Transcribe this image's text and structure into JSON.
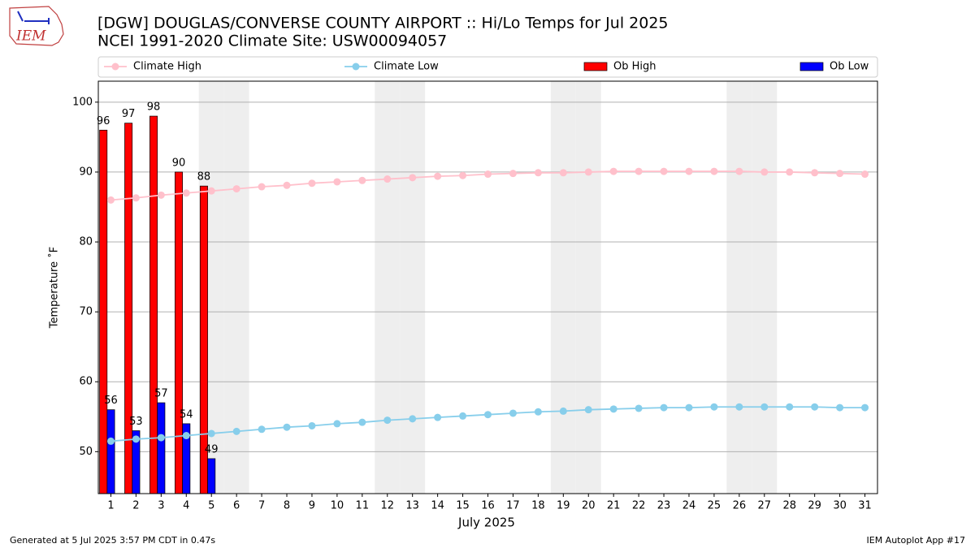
{
  "chart_data": {
    "type": "bar_line",
    "title": "[DGW] DOUGLAS/CONVERSE COUNTY AIRPORT :: Hi/Lo Temps for Jul 2025",
    "subtitle": "NCEI 1991-2020 Climate Site: USW00094057",
    "xlabel": "July 2025",
    "ylabel": "Temperature $^\\circ$F",
    "ylabel_text": "Temperature ˚F",
    "footer_left": "Generated at 5 Jul 2025 3:57 PM CDT in 0.47s",
    "footer_right": "IEM Autoplot App #17",
    "logo_text": "IEM",
    "x": [
      1,
      2,
      3,
      4,
      5,
      6,
      7,
      8,
      9,
      10,
      11,
      12,
      13,
      14,
      15,
      16,
      17,
      18,
      19,
      20,
      21,
      22,
      23,
      24,
      25,
      26,
      27,
      28,
      29,
      30,
      31
    ],
    "xlim": [
      0.5,
      31.5
    ],
    "xticks": [
      1,
      2,
      3,
      4,
      5,
      6,
      7,
      8,
      9,
      10,
      11,
      12,
      13,
      14,
      15,
      16,
      17,
      18,
      19,
      20,
      21,
      22,
      23,
      24,
      25,
      26,
      27,
      28,
      29,
      30,
      31
    ],
    "ylim": [
      44,
      103
    ],
    "yticks": [
      50,
      60,
      70,
      80,
      90,
      100
    ],
    "grid": true,
    "legend": "top",
    "highlight_days": [
      5,
      6,
      12,
      13,
      19,
      20,
      26,
      27
    ],
    "highlight_color": "#eeeeee",
    "series": [
      {
        "name": "Climate High",
        "kind": "line",
        "color": "#ffc0cb",
        "values": [
          86.0,
          86.3,
          86.7,
          87.0,
          87.3,
          87.6,
          87.9,
          88.1,
          88.4,
          88.6,
          88.8,
          89.0,
          89.2,
          89.4,
          89.5,
          89.7,
          89.8,
          89.9,
          89.9,
          90.0,
          90.1,
          90.1,
          90.1,
          90.1,
          90.1,
          90.1,
          90.0,
          90.0,
          89.9,
          89.8,
          89.7
        ]
      },
      {
        "name": "Climate Low",
        "kind": "line",
        "color": "#87ceeb",
        "values": [
          51.5,
          51.8,
          52.0,
          52.3,
          52.6,
          52.9,
          53.2,
          53.5,
          53.7,
          54.0,
          54.2,
          54.5,
          54.7,
          54.9,
          55.1,
          55.3,
          55.5,
          55.7,
          55.8,
          56.0,
          56.1,
          56.2,
          56.3,
          56.3,
          56.4,
          56.4,
          56.4,
          56.4,
          56.4,
          56.3,
          56.3
        ]
      },
      {
        "name": "Ob High",
        "kind": "bar",
        "color": "#ff0000",
        "values": [
          96,
          97,
          98,
          90,
          88,
          null,
          null,
          null,
          null,
          null,
          null,
          null,
          null,
          null,
          null,
          null,
          null,
          null,
          null,
          null,
          null,
          null,
          null,
          null,
          null,
          null,
          null,
          null,
          null,
          null,
          null
        ]
      },
      {
        "name": "Ob Low",
        "kind": "bar",
        "color": "#0000ff",
        "values": [
          56,
          53,
          57,
          54,
          49,
          null,
          null,
          null,
          null,
          null,
          null,
          null,
          null,
          null,
          null,
          null,
          null,
          null,
          null,
          null,
          null,
          null,
          null,
          null,
          null,
          null,
          null,
          null,
          null,
          null,
          null
        ]
      }
    ]
  }
}
